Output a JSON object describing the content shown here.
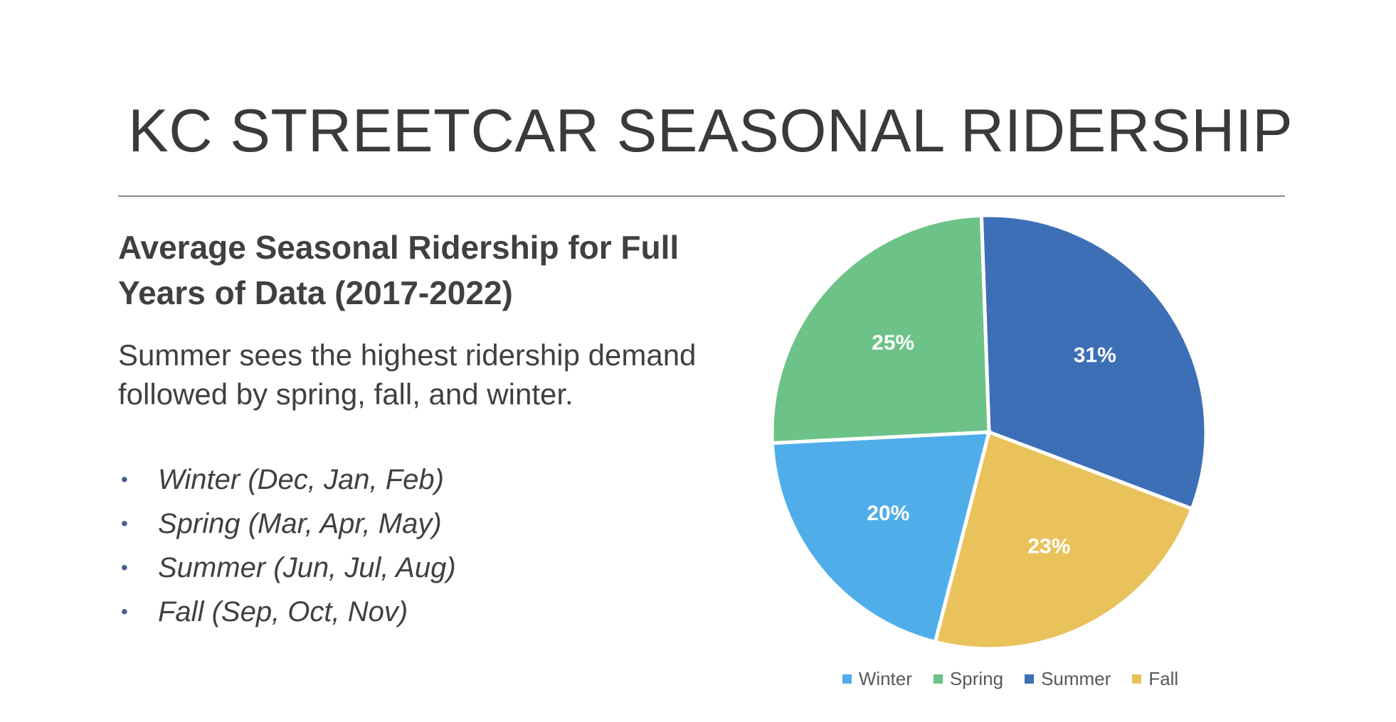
{
  "slide": {
    "title": "KC STREETCAR SEASONAL RIDERSHIP",
    "subtitle": "Average Seasonal Ridership for Full Years of Data (2017-2022)",
    "summary": "Summer sees the highest ridership demand followed by spring, fall, and winter.",
    "bullet_symbol": "•",
    "seasons": [
      "Winter (Dec, Jan, Feb)",
      "Spring (Mar, Apr, May)",
      "Summer (Jun, Jul, Aug)",
      "Fall (Sep, Oct, Nov)"
    ]
  },
  "chart_data": {
    "type": "pie",
    "categories": [
      "Winter",
      "Spring",
      "Summer",
      "Fall"
    ],
    "values": [
      20,
      25,
      31,
      23
    ],
    "labels": [
      "20%",
      "25%",
      "31%",
      "23%"
    ],
    "colors": [
      "#4faeea",
      "#6cc287",
      "#3d6fb6",
      "#e9c25c"
    ],
    "legend_position": "bottom"
  }
}
